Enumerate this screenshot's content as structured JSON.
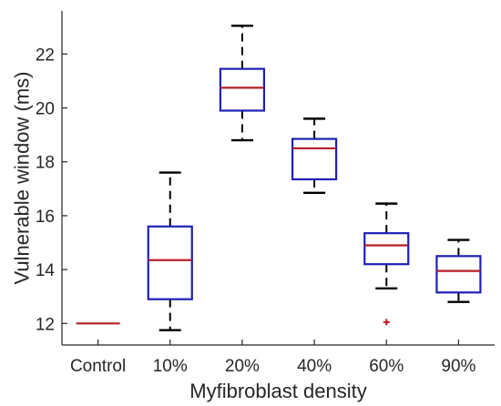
{
  "chart_data": {
    "type": "box",
    "title": "",
    "xlabel": "Myfibroblast density",
    "ylabel": "Vulnerable window (ms)",
    "categories": [
      "Control",
      "10%",
      "20%",
      "40%",
      "60%",
      "90%"
    ],
    "ylim": [
      11.2,
      23.6
    ],
    "yticks": [
      12,
      14,
      16,
      18,
      20,
      22
    ],
    "grid": false,
    "boxes": [
      {
        "category": "Control",
        "whisker_low": 12.0,
        "q1": 12.0,
        "median": 12.0,
        "q3": 12.0,
        "whisker_high": 12.0,
        "outliers": []
      },
      {
        "category": "10%",
        "whisker_low": 11.75,
        "q1": 12.9,
        "median": 14.35,
        "q3": 15.6,
        "whisker_high": 17.6,
        "outliers": []
      },
      {
        "category": "20%",
        "whisker_low": 18.8,
        "q1": 19.9,
        "median": 20.75,
        "q3": 21.45,
        "whisker_high": 23.05,
        "outliers": []
      },
      {
        "category": "40%",
        "whisker_low": 16.85,
        "q1": 17.35,
        "median": 18.5,
        "q3": 18.85,
        "whisker_high": 19.6,
        "outliers": []
      },
      {
        "category": "60%",
        "whisker_low": 13.3,
        "q1": 14.2,
        "median": 14.9,
        "q3": 15.35,
        "whisker_high": 16.45,
        "outliers": [
          12.05
        ]
      },
      {
        "category": "90%",
        "whisker_low": 12.8,
        "q1": 13.15,
        "median": 13.95,
        "q3": 14.5,
        "whisker_high": 15.1,
        "outliers": []
      }
    ],
    "colors": {
      "box": "#1f1fb4",
      "median": "#b41f24",
      "whisker": "#000000",
      "outlier": "#c0161c",
      "axis": "#262626"
    }
  }
}
